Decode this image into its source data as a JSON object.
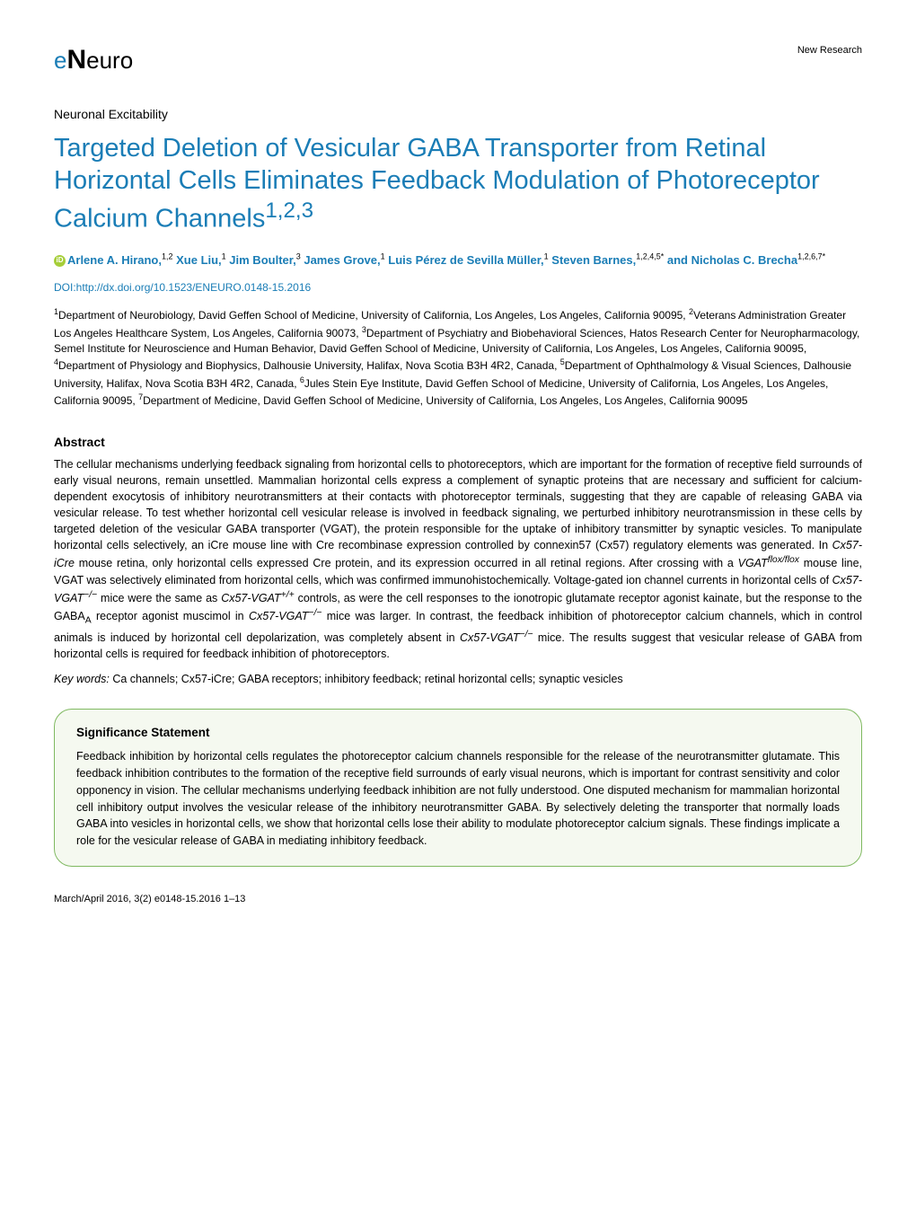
{
  "header": {
    "logo_text": "eNeuro",
    "right_text": "New Research"
  },
  "section_label": "Neuronal Excitability",
  "title": "Targeted Deletion of Vesicular GABA Transporter from Retinal Horizontal Cells Eliminates Feedback Modulation of Photoreceptor Calcium Channels",
  "title_sup": "1,2,3",
  "authors_html": "Arlene A. Hirano,<sup>1,2</sup> Xue Liu,<sup>1</sup> Jim Boulter,<sup>3</sup> James Grove,<sup>1</sup> Luis Pérez de Sevilla Müller,<sup>1</sup> Steven Barnes,<sup>1,2,4,5*</sup> and Nicholas C. Brecha<sup>1,2,6,7*</sup>",
  "doi": "DOI:http://dx.doi.org/10.1523/ENEURO.0148-15.2016",
  "affiliations": "<sup>1</sup>Department of Neurobiology, David Geffen School of Medicine, University of California, Los Angeles, Los Angeles, California 90095, <sup>2</sup>Veterans Administration Greater Los Angeles Healthcare System, Los Angeles, California 90073, <sup>3</sup>Department of Psychiatry and Biobehavioral Sciences, Hatos Research Center for Neuropharmacology, Semel Institute for Neuroscience and Human Behavior, David Geffen School of Medicine, University of California, Los Angeles, Los Angeles, California 90095, <sup>4</sup>Department of Physiology and Biophysics, Dalhousie University, Halifax, Nova Scotia B3H 4R2, Canada, <sup>5</sup>Department of Ophthalmology & Visual Sciences, Dalhousie University, Halifax, Nova Scotia B3H 4R2, Canada, <sup>6</sup>Jules Stein Eye Institute, David Geffen School of Medicine, University of California, Los Angeles, Los Angeles, California 90095, <sup>7</sup>Department of Medicine, David Geffen School of Medicine, University of California, Los Angeles, Los Angeles, California 90095",
  "abstract": {
    "heading": "Abstract",
    "text": "The cellular mechanisms underlying feedback signaling from horizontal cells to photoreceptors, which are important for the formation of receptive field surrounds of early visual neurons, remain unsettled. Mammalian horizontal cells express a complement of synaptic proteins that are necessary and sufficient for calcium-dependent exocytosis of inhibitory neurotransmitters at their contacts with photoreceptor terminals, suggesting that they are capable of releasing GABA via vesicular release. To test whether horizontal cell vesicular release is involved in feedback signaling, we perturbed inhibitory neurotransmission in these cells by targeted deletion of the vesicular GABA transporter (VGAT), the protein responsible for the uptake of inhibitory transmitter by synaptic vesicles. To manipulate horizontal cells selectively, an iCre mouse line with Cre recombinase expression controlled by connexin57 (Cx57) regulatory elements was generated. In <em>Cx57-iCre</em> mouse retina, only horizontal cells expressed Cre protein, and its expression occurred in all retinal regions. After crossing with a <em>VGAT<sup>flox/flox</sup></em> mouse line, VGAT was selectively eliminated from horizontal cells, which was confirmed immunohistochemically. Voltage-gated ion channel currents in horizontal cells of <em>Cx57-VGAT<sup>−/−</sup></em> mice were the same as <em>Cx57-VGAT<sup>+/+</sup></em> controls, as were the cell responses to the ionotropic glutamate receptor agonist kainate, but the response to the GABA<sub>A</sub> receptor agonist muscimol in <em>Cx57-VGAT<sup>−/−</sup></em> mice was larger. In contrast, the feedback inhibition of photoreceptor calcium channels, which in control animals is induced by horizontal cell depolarization, was completely absent in <em>Cx57-VGAT<sup>−/−</sup></em> mice. The results suggest that vesicular release of GABA from horizontal cells is required for feedback inhibition of photoreceptors."
  },
  "keywords": {
    "label": "Key words:",
    "text": "Ca channels; Cx57-iCre; GABA receptors; inhibitory feedback; retinal horizontal cells; synaptic vesicles"
  },
  "significance": {
    "heading": "Significance Statement",
    "text": "Feedback inhibition by horizontal cells regulates the photoreceptor calcium channels responsible for the release of the neurotransmitter glutamate. This feedback inhibition contributes to the formation of the receptive field surrounds of early visual neurons, which is important for contrast sensitivity and color opponency in vision. The cellular mechanisms underlying feedback inhibition are not fully understood. One disputed mechanism for mammalian horizontal cell inhibitory output involves the vesicular release of the inhibitory neurotransmitter GABA. By selectively deleting the transporter that normally loads GABA into vesicles in horizontal cells, we show that horizontal cells lose their ability to modulate photoreceptor calcium signals. These findings implicate a role for the vesicular release of GABA in mediating inhibitory feedback."
  },
  "footer": "March/April 2016, 3(2) e0148-15.2016 1–13",
  "colors": {
    "link_blue": "#1a7db6",
    "sig_border": "#7fb960",
    "sig_bg": "#f5f9f0",
    "orcid_green": "#a6ce39"
  }
}
